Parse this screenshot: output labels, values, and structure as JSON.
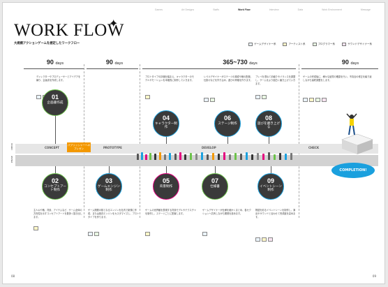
{
  "nav": [
    "Games",
    "Art Designs",
    "Staffs",
    "Work Flow",
    "Interview",
    "Data",
    "Work Environment",
    "Message"
  ],
  "nav_active_index": 3,
  "title": "WORK FLOW",
  "subtitle": "大規模アクションゲームを想定したワークフロー",
  "legend": [
    {
      "label": "ゲームデザイナー系",
      "color": "#eaf3fb"
    },
    {
      "label": "アーティスト系",
      "color": "#fff7c8"
    },
    {
      "label": "プログラマー系",
      "color": "#e8f6e2"
    },
    {
      "label": "サウンドデザイナー系",
      "color": "#f7e3f0"
    }
  ],
  "durations": [
    {
      "num": "90",
      "unit": "days"
    },
    {
      "num": "90",
      "unit": "days"
    },
    {
      "num": "365~730",
      "unit": "days"
    },
    {
      "num": "90",
      "unit": "days"
    }
  ],
  "phases": [
    "CONCEPT",
    "PROTOTYPE",
    "DEVELOP",
    "CHECK"
  ],
  "axis_labels": [
    "CHECK",
    "PHASE"
  ],
  "promo": "パブリッシャーへのプレゼン",
  "completion": "COMPLETION!",
  "steps": [
    {
      "num": "01",
      "label": "企画書作成",
      "ring": "#6cc24a",
      "desc": "ディレクターやプロデューサーとアイデアを練り、企画書を作成します。"
    },
    {
      "num": "02",
      "label": "コンセプトアート制作",
      "ring": "#6cc24a",
      "desc": "主人公や敵、背景、アイテムなど、ゲーム全体の方向性を示すコンセプトアートを数多く描き出します。"
    },
    {
      "num": "03",
      "label": "ゲームエンジン制作",
      "ring": "#1aa0de",
      "desc": "ゲーム開発の核となるエンジンを社内で新規に作成、または既存エンジンをカスタマイズし、プロトタイプを作ります。"
    },
    {
      "num": "04",
      "label": "キャラクター制作",
      "ring": "#1aa0de",
      "desc": "プロトタイプの評価を踏まえ、キャラクターのモデルやモーションを本格的に制作していきます。"
    },
    {
      "num": "05",
      "label": "背景制作",
      "ring": "#e4007f",
      "desc": "ゲームの世界観を表現する背景モデルやテクスチャを制作し、ステージごとに配置します。"
    },
    {
      "num": "06",
      "label": "ステージ制作",
      "ring": "#1aa0de",
      "desc": "レベルデザイナーがステージの構成や敵の配置、仕掛けなどを作り込み、遊びの骨格を作ります。"
    },
    {
      "num": "07",
      "label": "仕様書",
      "ring": "#6cc24a",
      "desc": "ゲームデザイナーが仕様を細かくまとめ、各セクションへ共有しながら開発を進めます。"
    },
    {
      "num": "08",
      "label": "遊びを磨き上げる",
      "ring": "#1aa0de",
      "desc": "プレイを重ねて手触りやバランスを調整し、ゲームをより面白く磨き上げていきます。"
    },
    {
      "num": "09",
      "label": "イベントシーン制作",
      "ring": "#1aa0de",
      "desc": "物語を彩るイベントシーンを制作し、演出やサウンドと合わせて完成度を高めます。"
    }
  ],
  "check_desc": "ゲームの完成後に、様々な品質の確認を行い、不具合の修正を繰り返しながら最終調整をします。",
  "page_numbers": [
    "08",
    "09"
  ]
}
